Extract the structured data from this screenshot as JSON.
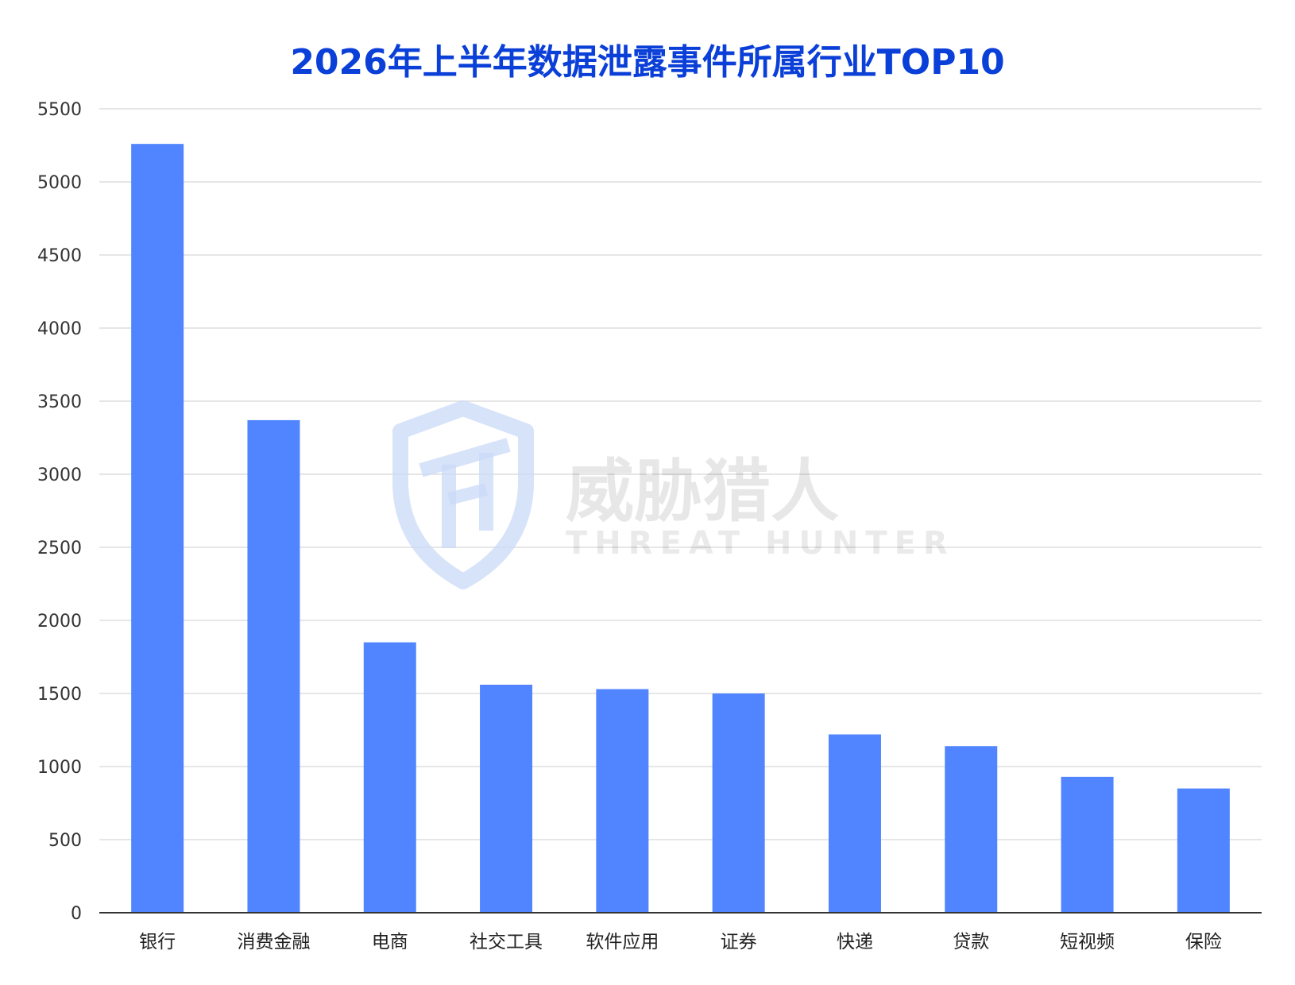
{
  "chart_data": {
    "type": "bar",
    "title": "2026年上半年数据泄露事件所属行业TOP10",
    "xlabel": "",
    "ylabel": "",
    "categories": [
      "银行",
      "消费金融",
      "电商",
      "社交工具",
      "软件应用",
      "证券",
      "快递",
      "贷款",
      "短视频",
      "保险"
    ],
    "values": [
      5260,
      3370,
      1850,
      1560,
      1530,
      1500,
      1220,
      1140,
      930,
      850
    ],
    "ylim": [
      0,
      5500
    ],
    "yticks": [
      0,
      500,
      1000,
      1500,
      2000,
      2500,
      3000,
      3500,
      4000,
      4500,
      5000,
      5500
    ],
    "grid": true,
    "legend": "none"
  },
  "colors": {
    "bar": "#5185FF",
    "title": "#0A3FD8",
    "grid": "#DDDDDD",
    "axis": "#333333",
    "watermark_shield": "#C9D9F7"
  },
  "watermark": {
    "icon": "shield-th-logo-icon",
    "text_cn": "威胁猎人",
    "text_en": "THREAT HUNTER"
  }
}
